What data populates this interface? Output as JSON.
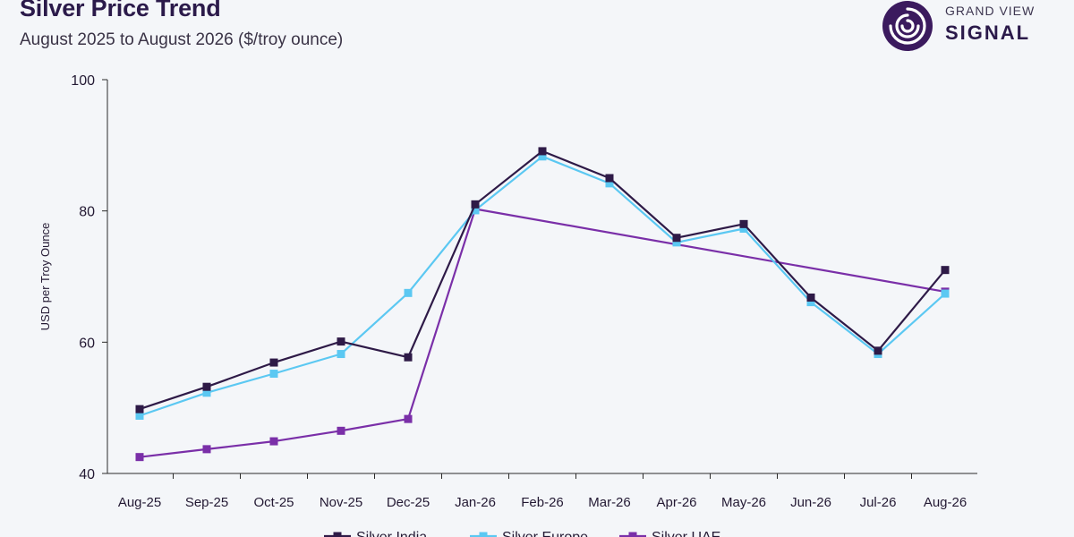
{
  "header": {
    "title": "Silver Price Trend",
    "subtitle": "August 2025 to August 2026 ($/troy ounce)"
  },
  "brand": {
    "line1": "GRAND VIEW",
    "line2": "SIGNAL",
    "icon": "signal-logo-icon",
    "color": "#3b1a5e"
  },
  "chart_data": {
    "type": "line",
    "categories": [
      "Aug-25",
      "Sep-25",
      "Oct-25",
      "Nov-25",
      "Dec-25",
      "Jan-26",
      "Feb-26",
      "Mar-26",
      "Apr-26",
      "May-26",
      "Jun-26",
      "Jul-26",
      "Aug-26"
    ],
    "series": [
      {
        "name": "Silver India",
        "color": "#2e1a47",
        "values": [
          49.8,
          53.2,
          56.9,
          60.1,
          57.7,
          81.0,
          89.1,
          85.0,
          75.9,
          78.0,
          66.8,
          58.7,
          71.0
        ]
      },
      {
        "name": "Silver Europe",
        "color": "#5bc8f2",
        "values": [
          48.8,
          52.3,
          55.2,
          58.2,
          67.5,
          80.1,
          88.3,
          84.2,
          75.2,
          77.3,
          66.1,
          58.2,
          67.4
        ]
      },
      {
        "name": "Silver UAE",
        "color": "#7a2fa8",
        "values": [
          42.5,
          43.7,
          44.9,
          46.5,
          48.3,
          80.3,
          null,
          null,
          null,
          null,
          null,
          null,
          67.7
        ]
      }
    ],
    "title": "Silver Price Trend",
    "subtitle": "August 2025 to August 2026 ($/troy ounce)",
    "xlabel": "",
    "ylabel": "USD per Troy Ounce",
    "ylim": [
      40,
      100
    ],
    "yticks": [
      40,
      60,
      80,
      100
    ],
    "grid": false,
    "legend": "bottom"
  }
}
